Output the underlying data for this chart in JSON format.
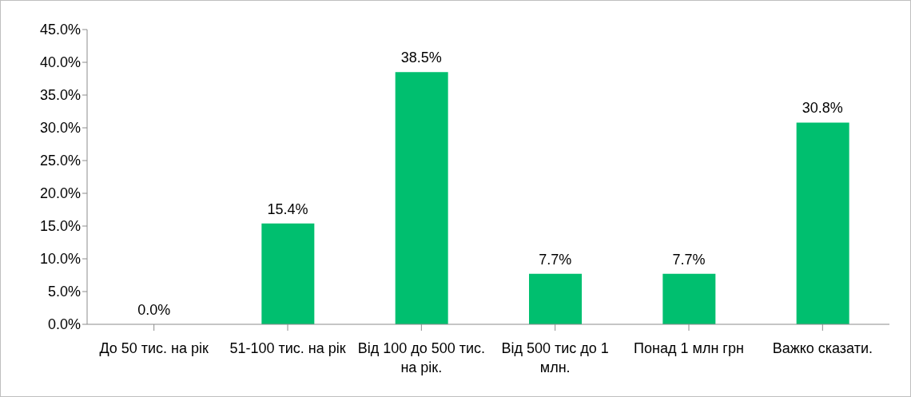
{
  "chart_data": {
    "type": "bar",
    "categories": [
      "До 50 тис. на рік",
      "51-100 тис. на рік",
      "Від 100 до 500 тис. на рік.",
      "Від 500 тис до 1 млн.",
      "Понад 1 млн грн",
      "Важко сказати."
    ],
    "values": [
      0.0,
      15.4,
      38.5,
      7.7,
      7.7,
      30.8
    ],
    "value_labels": [
      "0.0%",
      "15.4%",
      "38.5%",
      "7.7%",
      "7.7%",
      "30.8%"
    ],
    "color": "#00bf6f",
    "ylim": [
      0,
      45
    ],
    "yticks": [
      {
        "value": 0,
        "label": "0.0%"
      },
      {
        "value": 5,
        "label": "5.0%"
      },
      {
        "value": 10,
        "label": "10.0%"
      },
      {
        "value": 15,
        "label": "15.0%"
      },
      {
        "value": 20,
        "label": "20.0%"
      },
      {
        "value": 25,
        "label": "25.0%"
      },
      {
        "value": 30,
        "label": "30.0%"
      },
      {
        "value": 35,
        "label": "35.0%"
      },
      {
        "value": 40,
        "label": "40.0%"
      },
      {
        "value": 45,
        "label": "45.0%"
      }
    ],
    "grid": false,
    "legend": false
  }
}
